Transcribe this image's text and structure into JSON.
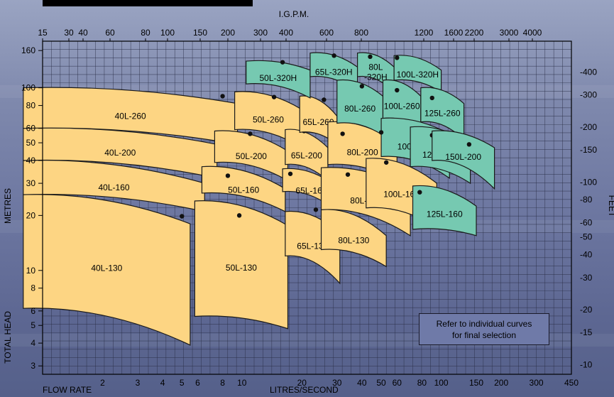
{
  "chart_data": {
    "type": "area",
    "top_axis_label": "I.G.P.M.",
    "top_ticks": [
      "15",
      "30",
      "40",
      "60",
      "80",
      "100",
      "150",
      "200",
      "300",
      "400",
      "600",
      "800",
      "1200",
      "1600",
      "2200",
      "3000",
      "4000"
    ],
    "bottom_ticks": [
      "2",
      "3",
      "4",
      "5",
      "6",
      "8",
      "10",
      "20",
      "30",
      "40",
      "50",
      "60",
      "80",
      "100",
      "150",
      "200",
      "300",
      "450"
    ],
    "left_ticks": [
      "3",
      "4",
      "5",
      "6",
      "8",
      "10",
      "20",
      "30",
      "40",
      "50",
      "60",
      "80",
      "100",
      "160"
    ],
    "right_ticks": [
      "10",
      "15",
      "20",
      "30",
      "40",
      "50",
      "60",
      "80",
      "100",
      "150",
      "200",
      "300",
      "400"
    ],
    "xlabel_left": "FLOW RATE",
    "xlabel_right": "LITRES/SECOND",
    "ylabel_left": "METRES",
    "ylabel_left_bottom": "TOTAL HEAD",
    "ylabel_right": "FEET",
    "xlim": [
      1,
      450
    ],
    "ylim": [
      2.7,
      180
    ],
    "scale": "log-log",
    "grid": true,
    "note_lines": [
      "Refer to individual curves",
      "for final selection"
    ],
    "colors": {
      "yellow": "#fdd583",
      "green": "#76c9b1",
      "outline": "#1a1a1a",
      "text": "#000000"
    },
    "regions": [
      {
        "label": "40L-130",
        "color": "yellow",
        "q_min": 0.8,
        "q_max": 5.5,
        "h_top": 26,
        "h_bottom": 6.2,
        "h_end_top": 18,
        "h_end_bottom": 3.9,
        "dot_q": 5.0,
        "dot_h": 19.8
      },
      {
        "label": "40L-160",
        "color": "yellow",
        "q_min": 0.8,
        "q_max": 6.5,
        "h_top": 40,
        "h_bottom": 26,
        "h_end_top": 30,
        "h_end_bottom": 21,
        "dot_q": 5.0,
        "dot_h": 36.5
      },
      {
        "label": "40L-200",
        "color": "yellow",
        "q_min": 0.8,
        "q_max": 7.5,
        "h_top": 60,
        "h_bottom": 40,
        "h_end_top": 49,
        "h_end_bottom": 32,
        "dot_q": 7.4,
        "dot_h": 58
      },
      {
        "label": "40L-260",
        "color": "yellow",
        "q_min": 0.8,
        "q_max": 9.5,
        "h_top": 100,
        "h_bottom": 60,
        "h_end_top": 82,
        "h_end_bottom": 49,
        "dot_q": 8.0,
        "dot_h": 90
      },
      {
        "label": "50L-130",
        "color": "yellow",
        "q_min": 5.8,
        "q_max": 17,
        "h_top": 24,
        "h_bottom": 5.6,
        "h_end_top": 17.6,
        "h_end_bottom": 4.8,
        "dot_q": 9.7,
        "dot_h": 20
      },
      {
        "label": "50L-160",
        "color": "yellow",
        "q_min": 6.3,
        "q_max": 16.5,
        "h_top": 37,
        "h_bottom": 26.5,
        "h_end_top": 28,
        "h_end_bottom": 21,
        "dot_q": 8.5,
        "dot_h": 33
      },
      {
        "label": "50L-200",
        "color": "yellow",
        "q_min": 7.3,
        "q_max": 17,
        "h_top": 58,
        "h_bottom": 39,
        "h_end_top": 45,
        "h_end_bottom": 31,
        "dot_q": 11,
        "dot_h": 56
      },
      {
        "label": "50L-260",
        "color": "yellow",
        "q_min": 9.2,
        "q_max": 20,
        "h_top": 95,
        "h_bottom": 59,
        "h_end_top": 76,
        "h_end_bottom": 47,
        "dot_q": 14.5,
        "dot_h": 89
      },
      {
        "label": "65L-130",
        "color": "yellow",
        "q_min": 16.5,
        "q_max": 31,
        "h_top": 21,
        "h_bottom": 12,
        "h_end_top": 16,
        "h_end_bottom": 8.5,
        "dot_q": 23.5,
        "dot_h": 21.5
      },
      {
        "label": "65L-160",
        "color": "yellow",
        "q_min": 16,
        "q_max": 31,
        "h_top": 36,
        "h_bottom": 27,
        "h_end_top": 28,
        "h_end_bottom": 20.5,
        "dot_q": 17.5,
        "dot_h": 33.8
      },
      {
        "label": "65L-200",
        "color": "yellow",
        "q_min": 16.5,
        "q_max": 27,
        "h_top": 59,
        "h_bottom": 38,
        "h_end_top": 47,
        "h_end_bottom": 31,
        "dot_q": 20.5,
        "dot_h": 58
      },
      {
        "label": "65L-260",
        "color": "yellow",
        "q_min": 19.5,
        "q_max": 30,
        "h_top": 90,
        "h_bottom": 57,
        "h_end_top": 70,
        "h_end_bottom": 49,
        "dot_q": 25.8,
        "dot_h": 86
      },
      {
        "label": "80L-130",
        "color": "yellow",
        "q_min": 25,
        "q_max": 53,
        "h_top": 21.5,
        "h_bottom": 13,
        "h_end_top": 15.5,
        "h_end_bottom": 10.5,
        "dot_q": 39,
        "dot_h": 21
      },
      {
        "label": "80L-160",
        "color": "yellow",
        "q_min": 25,
        "q_max": 70,
        "h_top": 36.5,
        "h_bottom": 21.5,
        "h_end_top": 28,
        "h_end_bottom": 15.5,
        "dot_q": 34,
        "dot_h": 33.5
      },
      {
        "label": "80L-200",
        "color": "yellow",
        "q_min": 27,
        "q_max": 60,
        "h_top": 65,
        "h_bottom": 38,
        "h_end_top": 50,
        "h_end_bottom": 31,
        "dot_q": 32,
        "dot_h": 56
      },
      {
        "label": "100L-160",
        "color": "yellow",
        "q_min": 42,
        "q_max": 95,
        "h_top": 41,
        "h_bottom": 22,
        "h_end_top": 30,
        "h_end_bottom": 17.2,
        "dot_q": 53,
        "dot_h": 39
      },
      {
        "label": "50L-320H",
        "color": "green",
        "q_min": 10.5,
        "q_max": 22,
        "h_top": 140,
        "h_bottom": 105,
        "h_end_top": 125,
        "h_end_bottom": 88,
        "dot_q": 16,
        "dot_h": 138
      },
      {
        "label": "65L-320H",
        "color": "green",
        "q_min": 22,
        "q_max": 38,
        "h_top": 155,
        "h_bottom": 115,
        "h_end_top": 130,
        "h_end_bottom": 95,
        "dot_q": 29,
        "dot_h": 150
      },
      {
        "label": "80L\n-320H",
        "color": "green",
        "q_min": 38,
        "q_max": 58,
        "h_top": 155,
        "h_bottom": 115,
        "h_end_top": 130,
        "h_end_bottom": 95,
        "dot_q": 44,
        "dot_h": 148
      },
      {
        "label": "100L-320H",
        "color": "green",
        "q_min": 58,
        "q_max": 100,
        "h_top": 150,
        "h_bottom": 110,
        "h_end_top": 125,
        "h_end_bottom": 95,
        "dot_q": 60,
        "dot_h": 146
      },
      {
        "label": "80L-260",
        "color": "green",
        "q_min": 30,
        "q_max": 51,
        "h_top": 110,
        "h_bottom": 64,
        "h_end_top": 90,
        "h_end_bottom": 55,
        "dot_q": 40,
        "dot_h": 102
      },
      {
        "label": "100L-260",
        "color": "green",
        "q_min": 51,
        "q_max": 79,
        "h_top": 110,
        "h_bottom": 68,
        "h_end_top": 90,
        "h_end_bottom": 59,
        "dot_q": 60,
        "dot_h": 97
      },
      {
        "label": "125L-260",
        "color": "green",
        "q_min": 79,
        "q_max": 130,
        "h_top": 100,
        "h_bottom": 65,
        "h_end_top": 82,
        "h_end_bottom": 52,
        "dot_q": 90,
        "dot_h": 88
      },
      {
        "label": "100L-200",
        "color": "green",
        "q_min": 50,
        "q_max": 110,
        "h_top": 68,
        "h_bottom": 42,
        "h_end_top": 56,
        "h_end_bottom": 32,
        "dot_q": 50,
        "dot_h": 57
      },
      {
        "label": "125L-200",
        "color": "green",
        "q_min": 70,
        "q_max": 140,
        "h_top": 61,
        "h_bottom": 37,
        "h_end_top": 50,
        "h_end_bottom": 30,
        "dot_q": 90,
        "dot_h": 55
      },
      {
        "label": "150L-200",
        "color": "green",
        "q_min": 90,
        "q_max": 185,
        "h_top": 58,
        "h_bottom": 40,
        "h_end_top": 47,
        "h_end_bottom": 28,
        "dot_q": 138,
        "dot_h": 49
      },
      {
        "label": "125L-160",
        "color": "green",
        "q_min": 72,
        "q_max": 150,
        "h_top": 29,
        "h_bottom": 16.8,
        "h_end_top": 22.5,
        "h_end_bottom": 15.5,
        "dot_q": 78,
        "dot_h": 26.8
      }
    ]
  }
}
